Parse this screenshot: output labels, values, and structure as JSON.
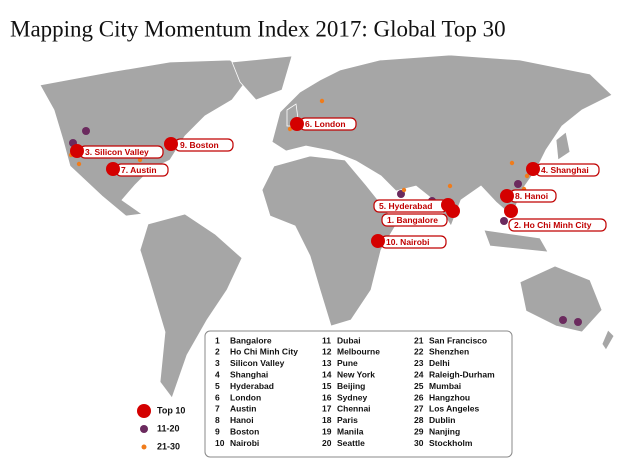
{
  "title": "Mapping City Momentum Index 2017: Global Top 30",
  "callouts": [
    "6. London",
    "9. Boston",
    "3. Silicon Valley",
    "7. Austin",
    "4. Shanghai",
    "8. Hanoi",
    "5. Hyderabad",
    "1. Bangalore",
    "2. Ho Chi Minh City",
    "10. Nairobi"
  ],
  "legend": [
    "Top 10",
    "11-20",
    "21-30"
  ],
  "ranking": [
    {
      "rank": "1",
      "name": "Bangalore"
    },
    {
      "rank": "2",
      "name": "Ho Chi Minh City"
    },
    {
      "rank": "3",
      "name": "Silicon Valley"
    },
    {
      "rank": "4",
      "name": "Shanghai"
    },
    {
      "rank": "5",
      "name": "Hyderabad"
    },
    {
      "rank": "6",
      "name": "London"
    },
    {
      "rank": "7",
      "name": "Austin"
    },
    {
      "rank": "8",
      "name": "Hanoi"
    },
    {
      "rank": "9",
      "name": "Boston"
    },
    {
      "rank": "10",
      "name": "Nairobi"
    },
    {
      "rank": "11",
      "name": "Dubai"
    },
    {
      "rank": "12",
      "name": "Melbourne"
    },
    {
      "rank": "13",
      "name": "Pune"
    },
    {
      "rank": "14",
      "name": "New York"
    },
    {
      "rank": "15",
      "name": "Beijing"
    },
    {
      "rank": "16",
      "name": "Sydney"
    },
    {
      "rank": "17",
      "name": "Chennai"
    },
    {
      "rank": "18",
      "name": "Paris"
    },
    {
      "rank": "19",
      "name": "Manila"
    },
    {
      "rank": "20",
      "name": "Seattle"
    },
    {
      "rank": "21",
      "name": "San Francisco"
    },
    {
      "rank": "22",
      "name": "Shenzhen"
    },
    {
      "rank": "23",
      "name": "Delhi"
    },
    {
      "rank": "24",
      "name": "Raleigh-Durham"
    },
    {
      "rank": "25",
      "name": "Mumbai"
    },
    {
      "rank": "26",
      "name": "Hangzhou"
    },
    {
      "rank": "27",
      "name": "Los Angeles"
    },
    {
      "rank": "28",
      "name": "Dublin"
    },
    {
      "rank": "29",
      "name": "Nanjing"
    },
    {
      "rank": "30",
      "name": "Stockholm"
    }
  ]
}
